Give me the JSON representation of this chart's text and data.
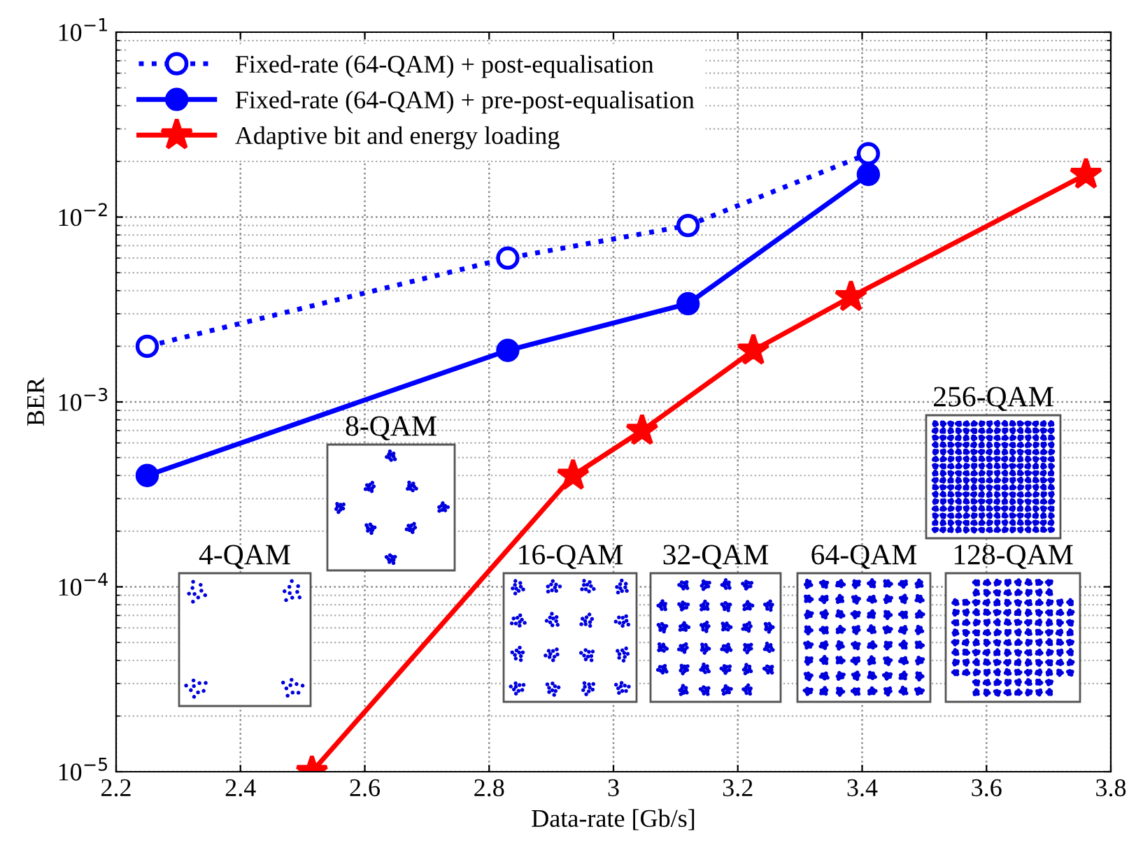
{
  "chart_data": {
    "type": "line",
    "xlabel": "Data-rate [Gb/s]",
    "ylabel": "BER",
    "log": "y",
    "xlim": [
      2.2,
      3.8
    ],
    "xticks": [
      2.2,
      2.4,
      2.6,
      2.8,
      3,
      3.2,
      3.4,
      3.6,
      3.8
    ],
    "ylim": [
      1e-05,
      0.1
    ],
    "yticks": [
      {
        "value": 1e-05,
        "label": "10$^{−5}$"
      },
      {
        "value": 0.0001,
        "label": "10$^{−4}$"
      },
      {
        "value": 0.001,
        "label": "10$^{−3}$"
      },
      {
        "value": 0.01,
        "label": "10$^{−2}$"
      },
      {
        "value": 0.1,
        "label": "10$^{−1}$"
      }
    ],
    "grid": true,
    "legend": "top left",
    "series": [
      {
        "name": "Fixed-rate (64-QAM) + post-equalisation",
        "color": "#0000ff",
        "marker": "circle",
        "line_style": "dotted",
        "x": [
          2.25,
          2.83,
          3.12,
          3.41
        ],
        "values": [
          0.002,
          0.006,
          0.009,
          0.022
        ]
      },
      {
        "name": "Fixed-rate (64-QAM) + pre-post-equalisation",
        "color": "#0000ff",
        "marker": "circle",
        "line_style": "solid",
        "x": [
          2.25,
          2.83,
          3.12,
          3.41
        ],
        "values": [
          0.0004,
          0.0019,
          0.0034,
          0.017
        ]
      },
      {
        "name": "Adaptive bit and energy loading",
        "color": "#ff0000",
        "marker": "star",
        "line_style": "solid",
        "x": [
          2.515,
          2.935,
          3.046,
          3.225,
          3.382,
          3.76
        ],
        "values": [
          1e-05,
          0.0004,
          0.0007,
          0.0019,
          0.0037,
          0.017
        ]
      }
    ],
    "annotations": [
      "4-QAM",
      "8-QAM",
      "16-QAM",
      "32-QAM",
      "64-QAM",
      "128-QAM",
      "256-QAM"
    ]
  }
}
